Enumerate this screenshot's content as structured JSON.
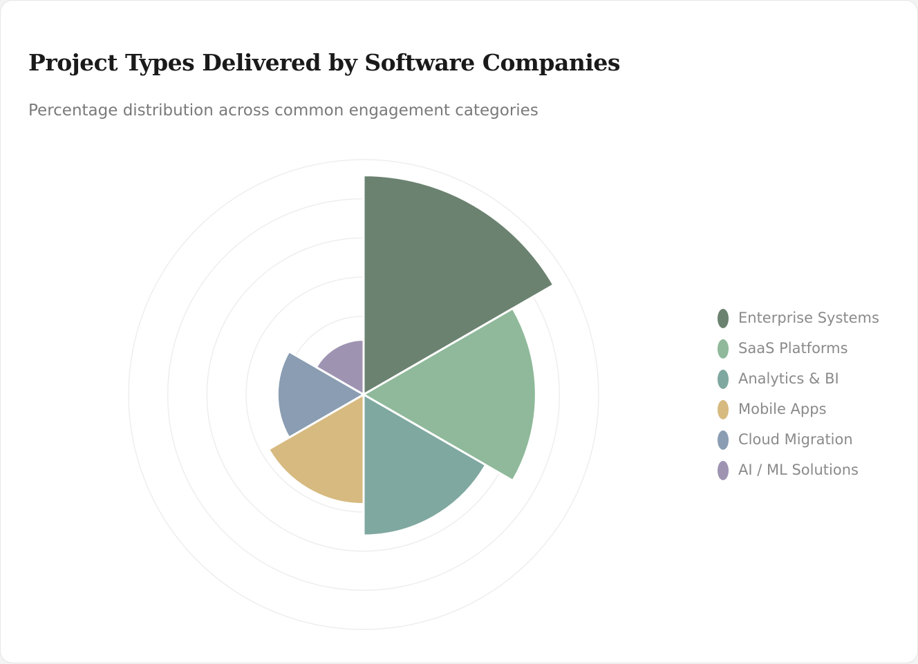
{
  "chart_data": {
    "type": "polarArea",
    "title": "Project Types Delivered by Software Companies",
    "subtitle": "Percentage distribution across common engagement categories",
    "categories": [
      "Enterprise Systems",
      "SaaS Platforms",
      "Analytics & BI",
      "Mobile Apps",
      "Cloud Migration",
      "AI / ML Solutions"
    ],
    "values": [
      28,
      22,
      18,
      14,
      11,
      7
    ],
    "colors": [
      "#6b8270",
      "#8fb99a",
      "#7fa8a0",
      "#d6ba80",
      "#8a9db2",
      "#9e94b2"
    ],
    "rlim": [
      0,
      30
    ],
    "rticks": [
      5,
      10,
      15,
      20,
      25,
      30
    ],
    "grid": true,
    "legend": "right"
  }
}
